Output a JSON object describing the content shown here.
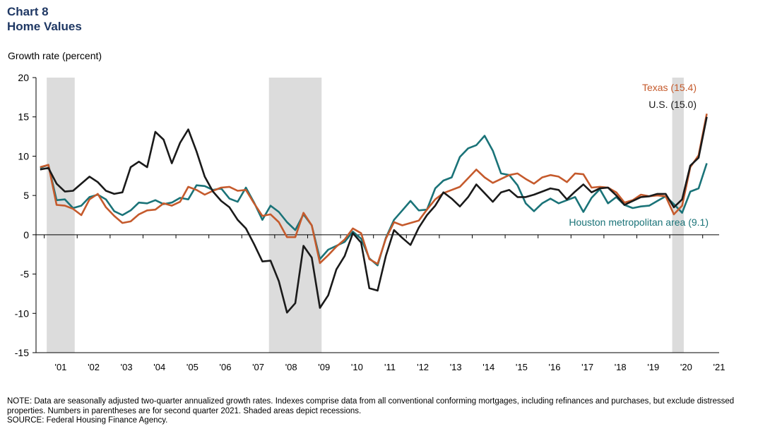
{
  "header": {
    "chart_number": "Chart 8",
    "title": "Home Values"
  },
  "notes": {
    "note": "NOTE: Data are seasonally adjusted two-quarter annualized growth rates. Indexes comprise data from all conventional conforming mortgages, including refinances and purchases, but exclude distressed properties. Numbers in parentheses are for second quarter 2021. Shaded areas depict recessions.",
    "source": "SOURCE: Federal Housing Finance Agency."
  },
  "colors": {
    "texas": "#c55a2c",
    "us": "#1a1a1a",
    "houston": "#1a7378",
    "recession": "#dcdcdc"
  },
  "chart_data": {
    "type": "line",
    "ylabel": "Growth rate (percent)",
    "ylim": [
      -15,
      20
    ],
    "yticks": [
      -15,
      -10,
      -5,
      0,
      5,
      10,
      15,
      20
    ],
    "x_start": "2000Q4",
    "x_end": "2021Q2",
    "xtick_labels": [
      "'01",
      "'02",
      "'03",
      "'04",
      "'05",
      "'06",
      "'07",
      "'08",
      "'09",
      "'10",
      "'11",
      "'12",
      "'13",
      "'14",
      "'15",
      "'16",
      "'17",
      "'18",
      "'19",
      "'20",
      "'21"
    ],
    "recessions": [
      [
        "2001Q1",
        "2001Q4"
      ],
      [
        "2007Q4",
        "2009Q2"
      ],
      [
        "2020Q1",
        "2020Q2"
      ]
    ],
    "grid": false,
    "series": [
      {
        "name": "U.S. (15.0)",
        "key": "us",
        "values": [
          8.3,
          8.5,
          6.5,
          5.5,
          5.6,
          6.5,
          7.4,
          6.7,
          5.6,
          5.2,
          5.4,
          8.6,
          9.3,
          8.6,
          13.1,
          12.1,
          9.1,
          11.7,
          13.4,
          10.6,
          7.4,
          5.5,
          4.3,
          3.5,
          1.9,
          0.8,
          -1.2,
          -3.4,
          -3.3,
          -5.9,
          -9.9,
          -8.7,
          -1.4,
          -2.9,
          -9.3,
          -7.7,
          -4.4,
          -2.7,
          0.2,
          -1.0,
          -6.8,
          -7.1,
          -2.7,
          0.6,
          -0.4,
          -1.3,
          0.9,
          2.5,
          3.7,
          5.4,
          4.6,
          3.6,
          4.8,
          6.4,
          5.3,
          4.2,
          5.4,
          5.7,
          4.8,
          4.8,
          5.1,
          5.5,
          5.9,
          5.7,
          4.5,
          5.5,
          6.4,
          5.4,
          5.9,
          6.0,
          5.0,
          3.8,
          4.3,
          4.8,
          4.9,
          5.2,
          5.2,
          3.5,
          4.5,
          8.8,
          9.8,
          15.0
        ]
      },
      {
        "name": "Texas (15.4)",
        "key": "texas",
        "values": [
          8.6,
          8.9,
          3.8,
          3.7,
          3.3,
          2.5,
          4.5,
          5.2,
          3.5,
          2.4,
          1.5,
          1.7,
          2.6,
          3.1,
          3.2,
          4.0,
          3.7,
          4.2,
          6.1,
          5.7,
          5.1,
          5.6,
          6.0,
          6.1,
          5.6,
          5.7,
          4.0,
          2.4,
          2.6,
          1.6,
          -0.3,
          -0.3,
          2.8,
          1.2,
          -3.6,
          -2.6,
          -1.5,
          -0.6,
          0.8,
          0.2,
          -3.1,
          -3.7,
          -0.5,
          1.6,
          1.2,
          1.5,
          1.8,
          3.2,
          4.5,
          5.3,
          5.7,
          6.1,
          7.2,
          8.3,
          7.3,
          6.6,
          7.1,
          7.6,
          7.8,
          7.1,
          6.5,
          7.3,
          7.6,
          7.4,
          6.7,
          7.8,
          7.7,
          6.0,
          6.1,
          6.0,
          5.4,
          4.1,
          4.4,
          5.1,
          4.9,
          5.0,
          4.9,
          2.6,
          3.7,
          8.6,
          10.1,
          15.4
        ]
      },
      {
        "name": "Houston metropolitan area (9.1)",
        "key": "houston",
        "values": [
          8.5,
          8.9,
          4.4,
          4.5,
          3.4,
          3.7,
          4.8,
          5.1,
          4.5,
          3.0,
          2.5,
          3.1,
          4.1,
          4.0,
          4.4,
          3.9,
          4.1,
          4.7,
          4.5,
          6.3,
          6.2,
          5.7,
          5.9,
          4.6,
          4.2,
          6.0,
          4.1,
          1.9,
          3.7,
          2.9,
          1.6,
          0.6,
          2.6,
          1.2,
          -3.1,
          -1.9,
          -1.4,
          -0.9,
          0.4,
          -0.5,
          -3.0,
          -3.9,
          -0.4,
          1.9,
          3.1,
          4.3,
          3.1,
          3.2,
          5.9,
          6.9,
          7.3,
          9.9,
          11.0,
          11.4,
          12.6,
          10.7,
          7.8,
          7.6,
          6.3,
          4.0,
          3.0,
          4.0,
          4.6,
          4.0,
          4.4,
          4.8,
          2.9,
          4.7,
          5.8,
          4.0,
          4.8,
          3.8,
          3.4,
          3.6,
          3.7,
          4.3,
          4.9,
          3.9,
          2.8,
          5.5,
          5.9,
          9.1
        ]
      }
    ]
  }
}
